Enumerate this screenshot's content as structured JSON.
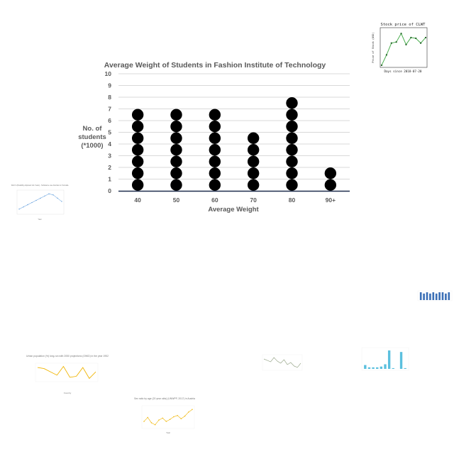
{
  "chart_data": [
    {
      "type": "scatter",
      "title": "Average Weight of Students in Fashion Institute of Technology",
      "xlabel": "Average Weight",
      "ylabel": "No. of students (*1000)",
      "ylabel_lines": [
        "No. of",
        "students",
        "(*1000)"
      ],
      "categories": [
        "40",
        "50",
        "60",
        "70",
        "80",
        "90+"
      ],
      "values": [
        7,
        7,
        7,
        5,
        8,
        2
      ],
      "ylim": [
        0,
        10
      ],
      "yticks": [
        "0",
        "1",
        "2",
        "3",
        "4",
        "5",
        "6",
        "7",
        "8",
        "9",
        "10"
      ],
      "grid": true,
      "colors": {
        "dot": "#000000",
        "grid": "#d9d9d9",
        "axis": "#1f2d4d"
      }
    },
    {
      "type": "line",
      "title": "Stock price of CLWT",
      "xlabel": "Days since 2018-07-20",
      "ylabel": "Price of Stock (USD)",
      "x": [
        0,
        1,
        2,
        3,
        4,
        5,
        6,
        7,
        8,
        9
      ],
      "values": [
        2,
        30,
        62,
        65,
        88,
        58,
        77,
        75,
        62,
        77
      ],
      "xticks": [
        "0",
        "1",
        "2",
        "3",
        "4",
        "5",
        "6",
        "7",
        "8",
        "9"
      ],
      "colors": {
        "line": "#4caf50",
        "point": "#1b5e20"
      }
    },
    {
      "type": "line",
      "title": "DALYs (Disability-Adjusted Life Years) - Substance use disorders in Somalia",
      "xlabel": "Year",
      "ylabel": "",
      "values": [
        40,
        42,
        44,
        46,
        48,
        50,
        52,
        54,
        53,
        50,
        47
      ],
      "colors": {
        "line": "#4a90d9"
      }
    },
    {
      "type": "line",
      "title": "Urban population (%) long-run with 2050 projections (OWID) in the year 1952",
      "xlabel": "Country",
      "ylabel": "",
      "values": [
        60,
        58,
        52,
        46,
        62,
        42,
        44,
        60,
        40,
        52
      ],
      "colors": {
        "line": "#f0b400"
      }
    },
    {
      "type": "line",
      "title": "Sex ratio by age (20 year olds) (UNWPP, 2017) in Austria",
      "xlabel": "Year",
      "ylabel": "",
      "values": [
        30,
        42,
        26,
        20,
        34,
        40,
        30,
        36,
        44,
        48,
        38,
        46,
        58,
        66
      ],
      "colors": {
        "line": "#f0b400"
      }
    },
    {
      "type": "line",
      "title": "",
      "xlabel": "",
      "ylabel": "",
      "values": [
        50,
        48,
        46,
        52,
        47,
        44,
        49,
        42,
        45,
        40,
        38,
        44
      ],
      "colors": {
        "line": "#8a9a7a"
      }
    },
    {
      "type": "bar",
      "title": "",
      "xlabel": "",
      "ylabel": "",
      "values": [
        5,
        2,
        2,
        2,
        3,
        6,
        24,
        1,
        0,
        22,
        1
      ],
      "colors": {
        "bar": "#5bc0de"
      }
    },
    {
      "type": "bar",
      "title": "",
      "xlabel": "",
      "ylabel": "",
      "values": [
        6,
        5,
        6,
        5,
        6,
        5,
        6,
        6,
        5,
        6
      ],
      "colors": {
        "bar": "#3b6fb6"
      }
    }
  ]
}
